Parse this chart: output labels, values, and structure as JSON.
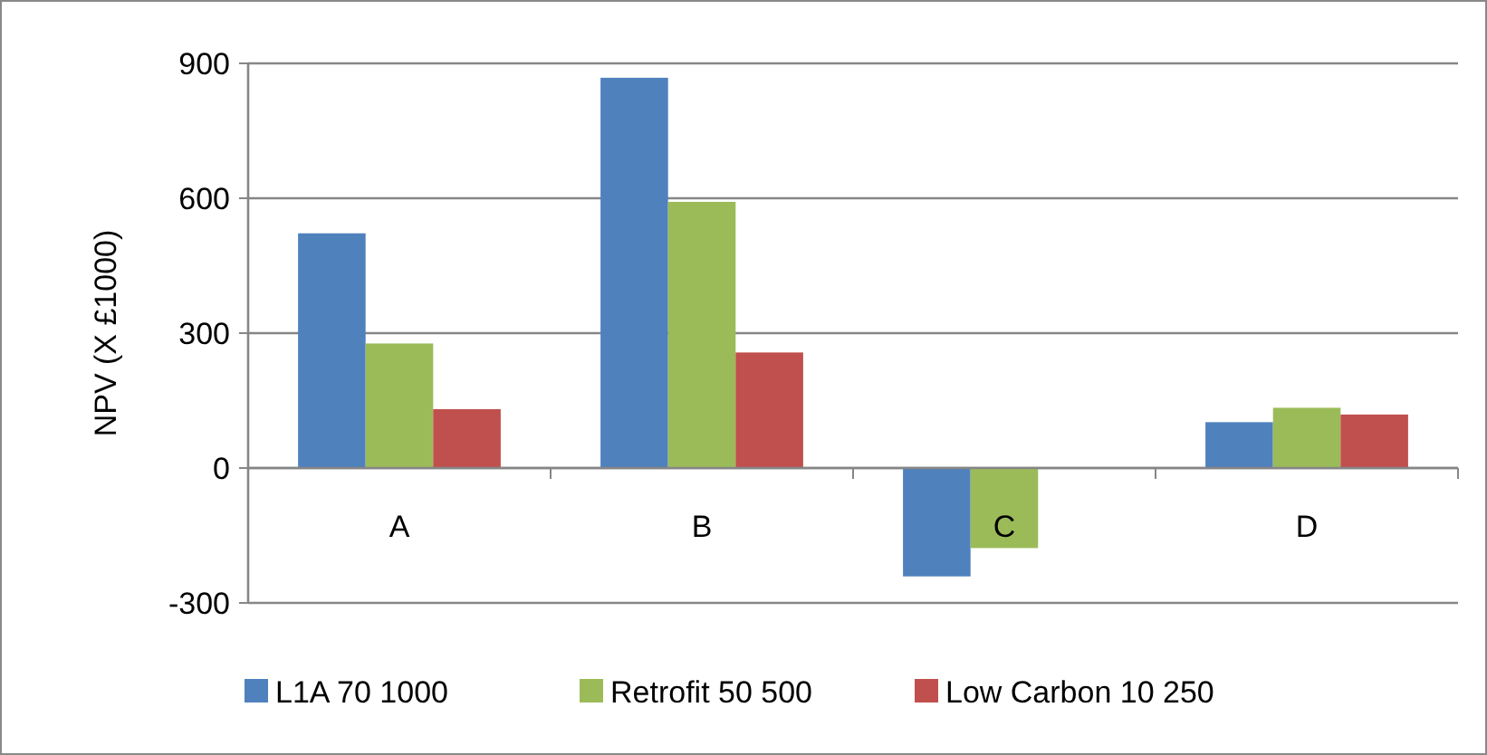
{
  "chart_data": {
    "type": "bar",
    "ylabel": "NPV (X £1000)",
    "categories": [
      "A",
      "B",
      "C",
      "D"
    ],
    "series": [
      {
        "name": "L1A 70 1000",
        "color": "#4f81bd",
        "values": [
          522,
          868,
          -241,
          102
        ]
      },
      {
        "name": "Retrofit 50 500",
        "color": "#9bbb59",
        "values": [
          277,
          592,
          -178,
          134
        ]
      },
      {
        "name": "Low Carbon 10 250",
        "color": "#c0504d",
        "values": [
          131,
          257,
          null,
          119
        ]
      }
    ],
    "ylim": [
      -300,
      900
    ],
    "yticks": [
      -300,
      0,
      300,
      600,
      900
    ],
    "grid": "y",
    "legend": "bottom"
  }
}
